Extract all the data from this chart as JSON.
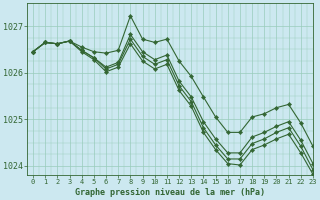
{
  "title": "Graphe pression niveau de la mer (hPa)",
  "background_color": "#cce8f0",
  "grid_color": "#99ccbb",
  "line_color": "#336633",
  "xlim": [
    -0.5,
    23
  ],
  "ylim": [
    1023.8,
    1027.5
  ],
  "yticks": [
    1024,
    1025,
    1026,
    1027
  ],
  "xticks": [
    0,
    1,
    2,
    3,
    4,
    5,
    6,
    7,
    8,
    9,
    10,
    11,
    12,
    13,
    14,
    15,
    16,
    17,
    18,
    19,
    20,
    21,
    22,
    23
  ],
  "series": [
    [
      1026.45,
      1026.65,
      1026.62,
      1026.68,
      1026.55,
      1026.45,
      1026.42,
      1026.48,
      1027.22,
      1026.72,
      1026.65,
      1026.72,
      1026.25,
      1025.92,
      1025.48,
      1025.05,
      1024.72,
      1024.72,
      1025.05,
      1025.12,
      1025.25,
      1025.32,
      1024.92,
      1024.42
    ],
    [
      1026.45,
      1026.65,
      1026.62,
      1026.68,
      1026.48,
      1026.32,
      1026.12,
      1026.22,
      1026.82,
      1026.45,
      1026.28,
      1026.38,
      1025.82,
      1025.48,
      1024.95,
      1024.58,
      1024.28,
      1024.28,
      1024.62,
      1024.72,
      1024.85,
      1024.95,
      1024.55,
      1024.05
    ],
    [
      1026.45,
      1026.65,
      1026.62,
      1026.68,
      1026.48,
      1026.32,
      1026.08,
      1026.18,
      1026.72,
      1026.35,
      1026.18,
      1026.28,
      1025.72,
      1025.38,
      1024.82,
      1024.45,
      1024.15,
      1024.15,
      1024.48,
      1024.58,
      1024.72,
      1024.82,
      1024.42,
      1023.92
    ],
    [
      1026.45,
      1026.65,
      1026.62,
      1026.68,
      1026.45,
      1026.28,
      1026.02,
      1026.12,
      1026.62,
      1026.25,
      1026.08,
      1026.18,
      1025.62,
      1025.28,
      1024.72,
      1024.35,
      1024.05,
      1024.02,
      1024.35,
      1024.45,
      1024.58,
      1024.68,
      1024.28,
      1023.82
    ]
  ]
}
